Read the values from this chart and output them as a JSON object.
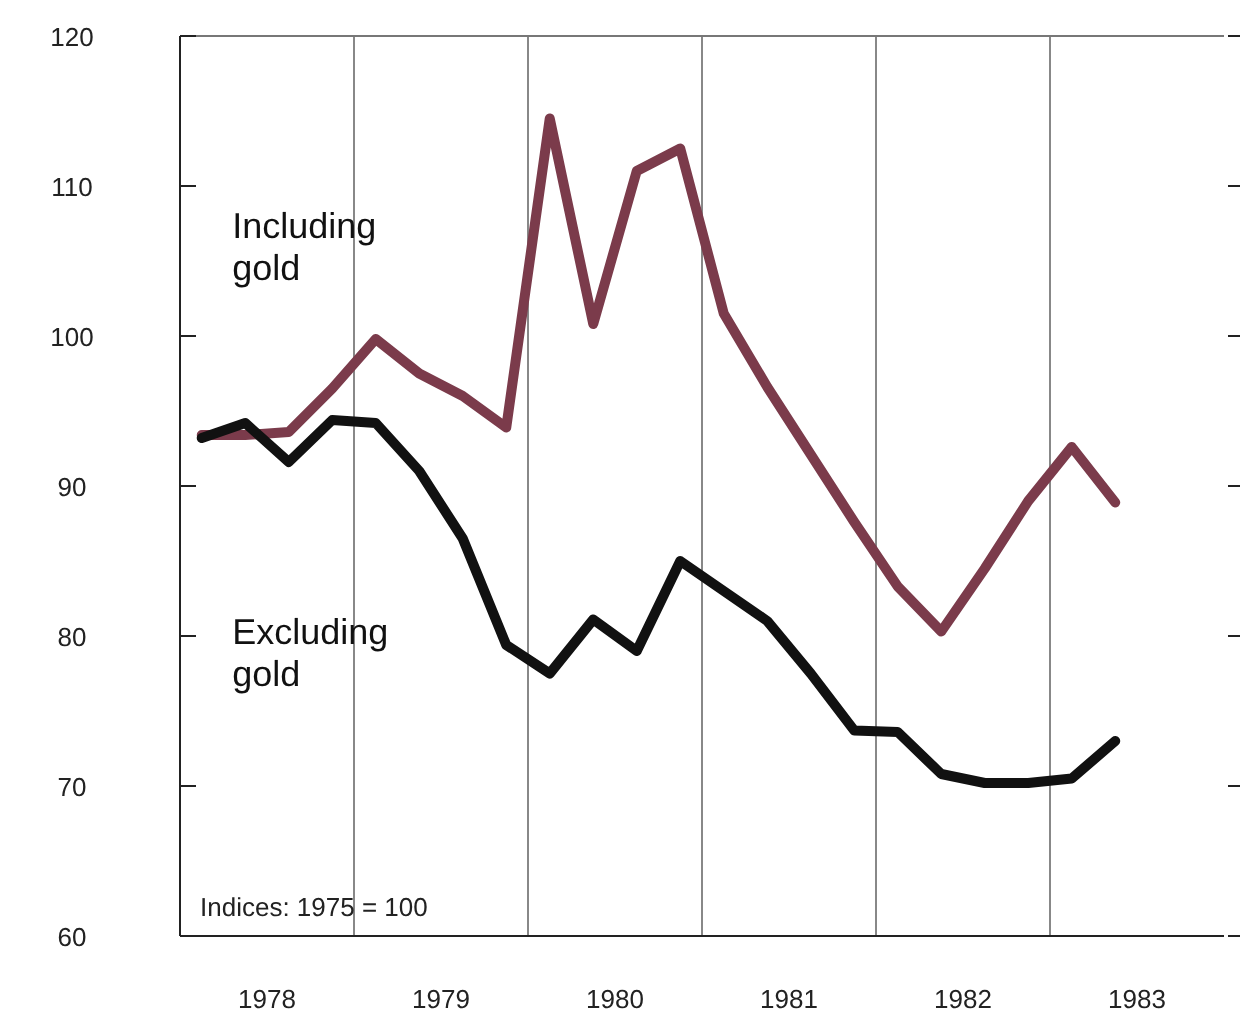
{
  "chart_data": {
    "type": "line",
    "x": [
      1978.125,
      1978.375,
      1978.625,
      1978.875,
      1979.125,
      1979.375,
      1979.625,
      1979.875,
      1980.125,
      1980.375,
      1980.625,
      1980.875,
      1981.125,
      1981.375,
      1981.625,
      1981.875,
      1982.125,
      1982.375,
      1982.625,
      1982.875,
      1983.125,
      1983.375
    ],
    "series": [
      {
        "name": "Including gold",
        "color": "#7b3b4b",
        "values": [
          93.4,
          93.4,
          93.6,
          96.5,
          99.8,
          97.5,
          96,
          93.9,
          114.5,
          100.8,
          111,
          112.5,
          101.5,
          96.6,
          92.1,
          87.6,
          83.3,
          80.3,
          84.5,
          89,
          92.6,
          88.9
        ]
      },
      {
        "name": "Excluding gold",
        "color": "#111111",
        "values": [
          93.2,
          94.2,
          91.6,
          94.4,
          94.2,
          91,
          86.5,
          79.4,
          77.5,
          81.1,
          79,
          85,
          83,
          81,
          77.5,
          73.7,
          73.6,
          70.8,
          70.2,
          70.2,
          70.5,
          73
        ]
      }
    ],
    "xlim": [
      1978,
      1984
    ],
    "xticks": [
      {
        "value": 1978.5,
        "label": "1978"
      },
      {
        "value": 1979.5,
        "label": "1979"
      },
      {
        "value": 1980.5,
        "label": "1980"
      },
      {
        "value": 1981.5,
        "label": "1981"
      },
      {
        "value": 1982.5,
        "label": "1982"
      },
      {
        "value": 1983.5,
        "label": "1983"
      }
    ],
    "ylim": [
      60,
      120
    ],
    "yticks": [
      60,
      70,
      80,
      90,
      100,
      110,
      120
    ],
    "ref_lines": [
      {
        "axis": "x",
        "value": 1979,
        "color": "#888888"
      },
      {
        "axis": "x",
        "value": 1980,
        "color": "#888888"
      },
      {
        "axis": "x",
        "value": 1981,
        "color": "#888888"
      },
      {
        "axis": "x",
        "value": 1982,
        "color": "#888888"
      },
      {
        "axis": "x",
        "value": 1983,
        "color": "#888888"
      }
    ],
    "annotations": [
      "Indices: 1975 = 100"
    ],
    "grid": false,
    "marker": "none",
    "line_style": "solid"
  }
}
